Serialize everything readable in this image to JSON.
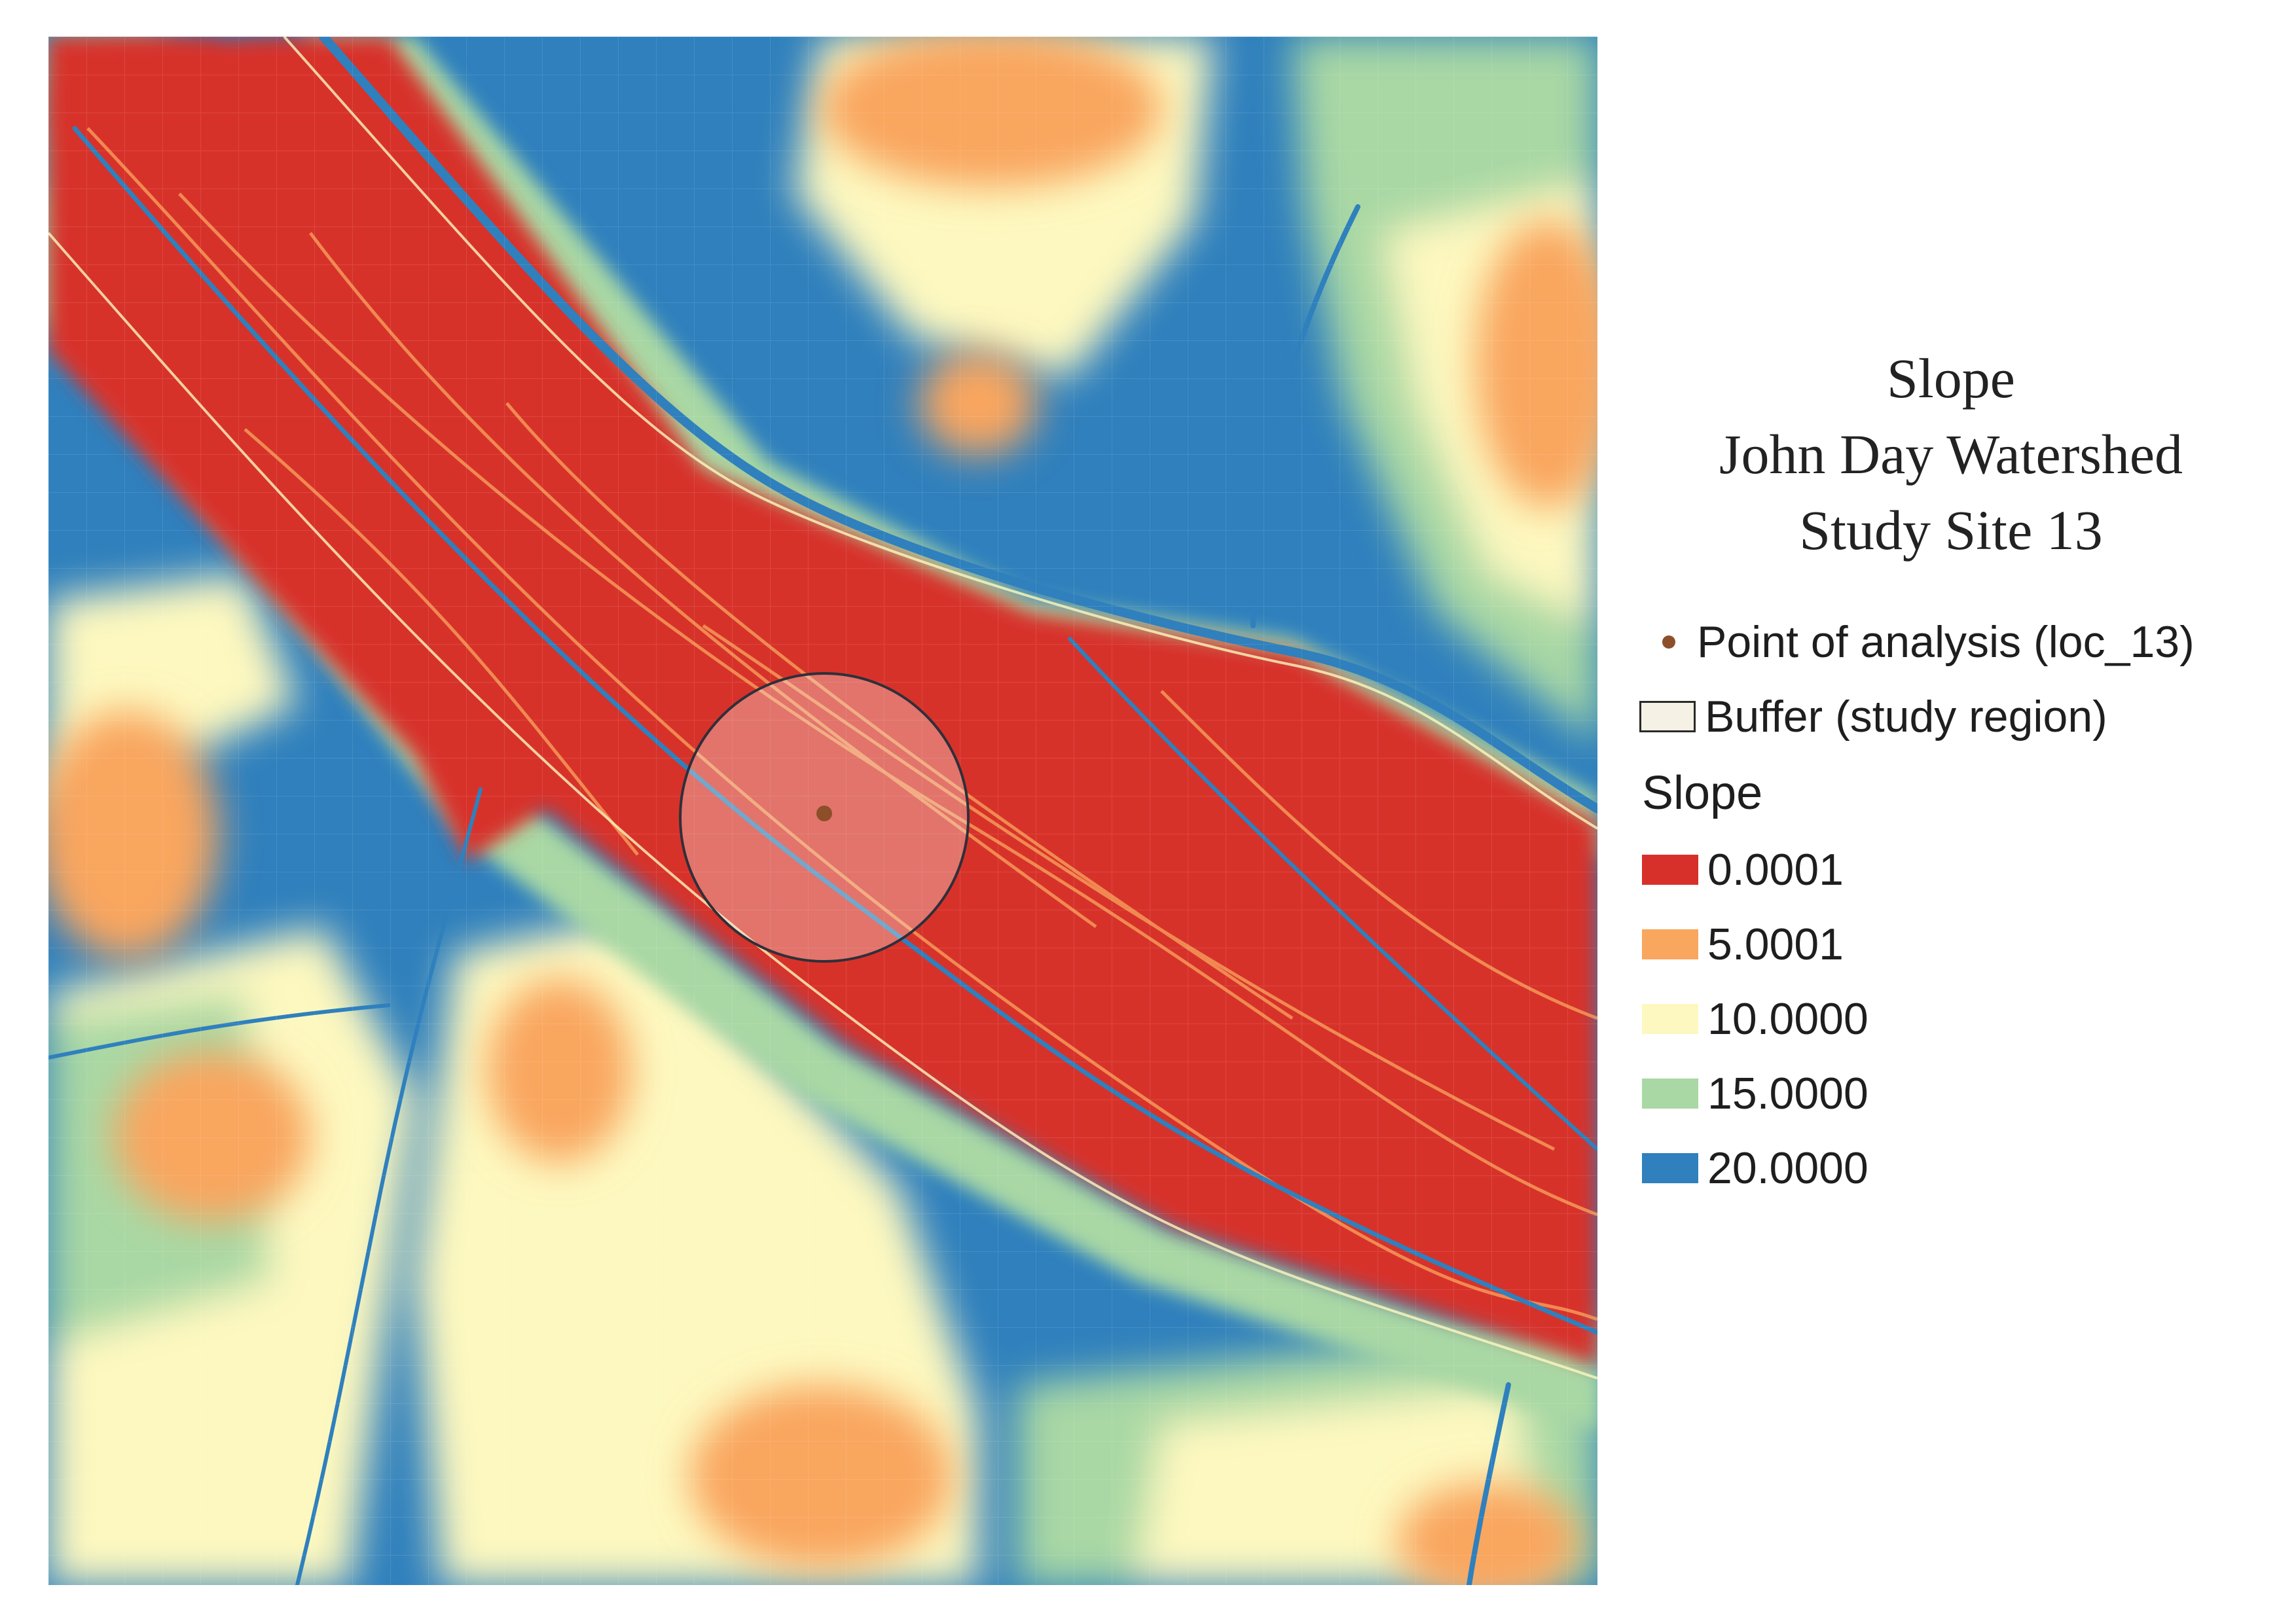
{
  "map": {
    "title_lines": [
      "Slope",
      "John Day Watershed",
      "Study Site 13"
    ],
    "colors": {
      "steep": "#2f80bd",
      "moderate_steep": "#a9d8a4",
      "moderate": "#fdf8bf",
      "gentle": "#f9a65f",
      "flat": "#d7302a"
    }
  },
  "legend": {
    "point": {
      "label": "Point of analysis (loc_13)",
      "color": "#8c4f2a"
    },
    "buffer": {
      "label": "Buffer (study region)",
      "fill": "#f5f1e4",
      "stroke": "#2a2a2a"
    },
    "section_title": "Slope",
    "classes": [
      {
        "label": "0.0001",
        "color": "#d7302a"
      },
      {
        "label": "5.0001",
        "color": "#f9a65f"
      },
      {
        "label": "10.0000",
        "color": "#fdf8bf"
      },
      {
        "label": "15.0000",
        "color": "#a9d8a4"
      },
      {
        "label": "20.0000",
        "color": "#2f80bd"
      }
    ]
  }
}
